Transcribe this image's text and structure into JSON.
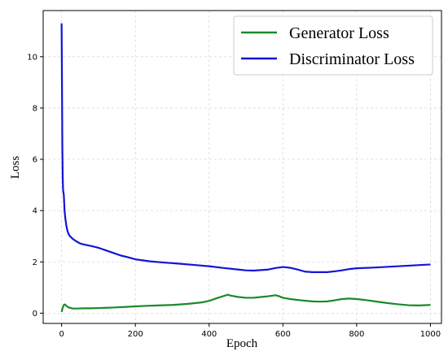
{
  "chart_data": {
    "type": "line",
    "xlabel": "Epoch",
    "ylabel": "Loss",
    "xlim": [
      -50,
      1030
    ],
    "ylim": [
      -0.4,
      11.8
    ],
    "x_ticks": [
      0,
      200,
      400,
      600,
      800,
      1000
    ],
    "y_ticks": [
      0,
      2,
      4,
      6,
      8,
      10
    ],
    "grid": true,
    "legend_position": "top-right",
    "series": [
      {
        "name": "Generator Loss",
        "color": "#1a8a2a",
        "points": [
          [
            0,
            0.05
          ],
          [
            3,
            0.22
          ],
          [
            6,
            0.32
          ],
          [
            9,
            0.34
          ],
          [
            12,
            0.3
          ],
          [
            16,
            0.25
          ],
          [
            20,
            0.22
          ],
          [
            25,
            0.2
          ],
          [
            30,
            0.18
          ],
          [
            40,
            0.18
          ],
          [
            60,
            0.19
          ],
          [
            80,
            0.19
          ],
          [
            100,
            0.2
          ],
          [
            140,
            0.22
          ],
          [
            180,
            0.25
          ],
          [
            220,
            0.28
          ],
          [
            260,
            0.3
          ],
          [
            300,
            0.32
          ],
          [
            340,
            0.36
          ],
          [
            380,
            0.42
          ],
          [
            400,
            0.48
          ],
          [
            420,
            0.58
          ],
          [
            440,
            0.67
          ],
          [
            450,
            0.72
          ],
          [
            460,
            0.68
          ],
          [
            480,
            0.63
          ],
          [
            500,
            0.6
          ],
          [
            520,
            0.6
          ],
          [
            540,
            0.63
          ],
          [
            560,
            0.66
          ],
          [
            580,
            0.7
          ],
          [
            590,
            0.66
          ],
          [
            600,
            0.6
          ],
          [
            620,
            0.55
          ],
          [
            650,
            0.5
          ],
          [
            680,
            0.46
          ],
          [
            700,
            0.45
          ],
          [
            720,
            0.46
          ],
          [
            740,
            0.5
          ],
          [
            760,
            0.55
          ],
          [
            780,
            0.57
          ],
          [
            800,
            0.55
          ],
          [
            820,
            0.52
          ],
          [
            850,
            0.46
          ],
          [
            880,
            0.4
          ],
          [
            910,
            0.35
          ],
          [
            940,
            0.31
          ],
          [
            970,
            0.3
          ],
          [
            1000,
            0.32
          ]
        ]
      },
      {
        "name": "Discriminator Loss",
        "color": "#1414d8",
        "points": [
          [
            0,
            11.3
          ],
          [
            1,
            9.0
          ],
          [
            2,
            6.5
          ],
          [
            3,
            5.3
          ],
          [
            4,
            4.8
          ],
          [
            6,
            4.6
          ],
          [
            8,
            4.0
          ],
          [
            10,
            3.7
          ],
          [
            13,
            3.4
          ],
          [
            16,
            3.2
          ],
          [
            20,
            3.05
          ],
          [
            24,
            2.98
          ],
          [
            30,
            2.9
          ],
          [
            40,
            2.8
          ],
          [
            50,
            2.72
          ],
          [
            60,
            2.68
          ],
          [
            80,
            2.62
          ],
          [
            100,
            2.55
          ],
          [
            120,
            2.45
          ],
          [
            140,
            2.35
          ],
          [
            160,
            2.25
          ],
          [
            180,
            2.18
          ],
          [
            200,
            2.1
          ],
          [
            240,
            2.02
          ],
          [
            280,
            1.97
          ],
          [
            320,
            1.93
          ],
          [
            360,
            1.88
          ],
          [
            400,
            1.83
          ],
          [
            440,
            1.76
          ],
          [
            480,
            1.7
          ],
          [
            500,
            1.67
          ],
          [
            520,
            1.66
          ],
          [
            560,
            1.7
          ],
          [
            580,
            1.76
          ],
          [
            600,
            1.8
          ],
          [
            620,
            1.77
          ],
          [
            640,
            1.7
          ],
          [
            660,
            1.62
          ],
          [
            680,
            1.6
          ],
          [
            700,
            1.6
          ],
          [
            720,
            1.6
          ],
          [
            740,
            1.63
          ],
          [
            760,
            1.67
          ],
          [
            780,
            1.72
          ],
          [
            800,
            1.75
          ],
          [
            850,
            1.78
          ],
          [
            900,
            1.82
          ],
          [
            950,
            1.86
          ],
          [
            1000,
            1.9
          ]
        ]
      }
    ]
  }
}
